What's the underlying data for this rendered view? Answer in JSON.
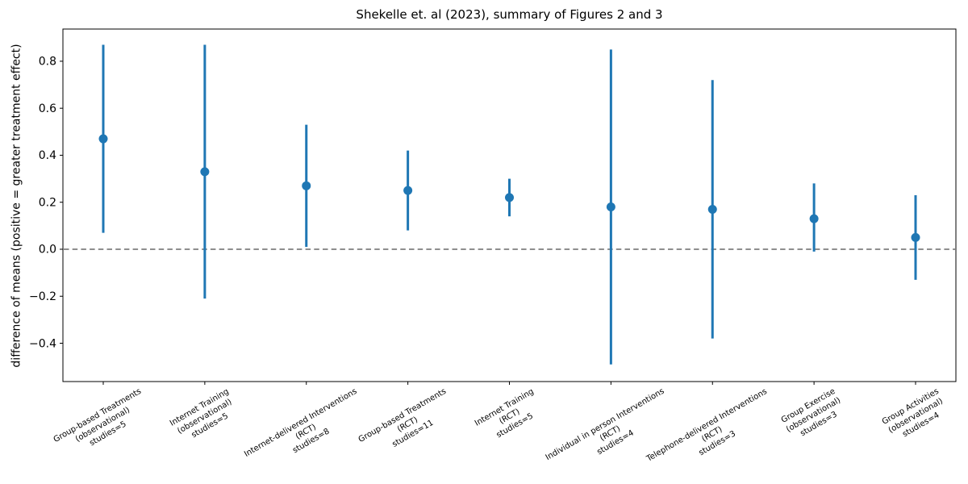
{
  "chart_data": {
    "type": "scatter",
    "error_bars": true,
    "title": "Shekelle et. al (2023), summary of Figures 2 and 3",
    "ylabel": "difference of means (positive = greater treatment effect)",
    "xlabel": "",
    "ylim": [
      -0.563,
      0.937
    ],
    "yticks": [
      0.8,
      0.6,
      0.4,
      0.2,
      0.0,
      -0.2,
      -0.4
    ],
    "grid": false,
    "legend": null,
    "zero_line": {
      "y": 0.0,
      "style": "dashed",
      "color": "#7f7f7f"
    },
    "colors": {
      "marker": "#1f77b4",
      "axis": "#000000",
      "zero_line": "#7f7f7f"
    },
    "points": [
      {
        "label_lines": [
          "Group-based Treatments",
          "(observational)",
          "studies=5"
        ],
        "mean": 0.47,
        "ci_low": 0.07,
        "ci_high": 0.87
      },
      {
        "label_lines": [
          "Internet Training",
          "(observational)",
          "studies=5"
        ],
        "mean": 0.33,
        "ci_low": -0.21,
        "ci_high": 0.87
      },
      {
        "label_lines": [
          "Internet-delivered Interventions",
          "(RCT)",
          "studies=8"
        ],
        "mean": 0.27,
        "ci_low": 0.01,
        "ci_high": 0.53
      },
      {
        "label_lines": [
          "Group-based Treatments",
          "(RCT)",
          "studies=11"
        ],
        "mean": 0.25,
        "ci_low": 0.08,
        "ci_high": 0.42
      },
      {
        "label_lines": [
          "Internet Training",
          "(RCT)",
          "studies=5"
        ],
        "mean": 0.22,
        "ci_low": 0.14,
        "ci_high": 0.3
      },
      {
        "label_lines": [
          "Individual in person Interventions",
          "(RCT)",
          "studies=4"
        ],
        "mean": 0.18,
        "ci_low": -0.49,
        "ci_high": 0.85
      },
      {
        "label_lines": [
          "Telephone-delivered Interventions",
          "(RCT)",
          "studies=3"
        ],
        "mean": 0.17,
        "ci_low": -0.38,
        "ci_high": 0.72
      },
      {
        "label_lines": [
          "Group Exercise",
          "(observational)",
          "studies=3"
        ],
        "mean": 0.13,
        "ci_low": -0.01,
        "ci_high": 0.28
      },
      {
        "label_lines": [
          "Group Activities",
          "(observational)",
          "studies=4"
        ],
        "mean": 0.05,
        "ci_low": -0.13,
        "ci_high": 0.23
      }
    ]
  }
}
